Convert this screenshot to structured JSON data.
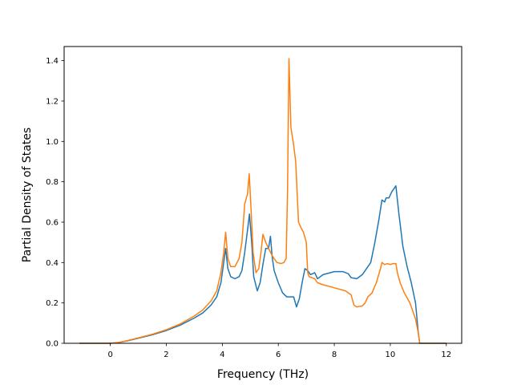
{
  "chart_data": {
    "type": "line",
    "title": "",
    "xlabel": "Frequency (THz)",
    "ylabel": "Partial Density of States",
    "xlim": [
      -1.65,
      12.55
    ],
    "ylim": [
      0.0,
      1.47
    ],
    "xticks": [
      0,
      2,
      4,
      6,
      8,
      10,
      12
    ],
    "xtick_labels": [
      "0",
      "2",
      "4",
      "6",
      "8",
      "10",
      "12"
    ],
    "yticks": [
      0.0,
      0.2,
      0.4,
      0.6,
      0.8,
      1.0,
      1.2,
      1.4
    ],
    "ytick_labels": [
      "0.0",
      "0.2",
      "0.4",
      "0.6",
      "0.8",
      "1.0",
      "1.2",
      "1.4"
    ],
    "grid": false,
    "series": [
      {
        "color": "#1f77b4",
        "points": [
          [
            -1.1,
            0.0
          ],
          [
            0.0,
            0.0
          ],
          [
            0.3,
            0.004
          ],
          [
            0.6,
            0.012
          ],
          [
            1.0,
            0.025
          ],
          [
            1.5,
            0.042
          ],
          [
            2.0,
            0.063
          ],
          [
            2.5,
            0.09
          ],
          [
            3.0,
            0.125
          ],
          [
            3.3,
            0.15
          ],
          [
            3.6,
            0.19
          ],
          [
            3.8,
            0.23
          ],
          [
            3.95,
            0.3
          ],
          [
            4.05,
            0.4
          ],
          [
            4.12,
            0.47
          ],
          [
            4.2,
            0.37
          ],
          [
            4.3,
            0.33
          ],
          [
            4.45,
            0.32
          ],
          [
            4.6,
            0.33
          ],
          [
            4.7,
            0.36
          ],
          [
            4.8,
            0.45
          ],
          [
            4.9,
            0.56
          ],
          [
            4.97,
            0.64
          ],
          [
            5.05,
            0.5
          ],
          [
            5.12,
            0.33
          ],
          [
            5.25,
            0.26
          ],
          [
            5.35,
            0.3
          ],
          [
            5.45,
            0.39
          ],
          [
            5.55,
            0.47
          ],
          [
            5.65,
            0.47
          ],
          [
            5.72,
            0.53
          ],
          [
            5.78,
            0.43
          ],
          [
            5.85,
            0.36
          ],
          [
            6.0,
            0.3
          ],
          [
            6.15,
            0.25
          ],
          [
            6.3,
            0.23
          ],
          [
            6.45,
            0.23
          ],
          [
            6.55,
            0.23
          ],
          [
            6.65,
            0.18
          ],
          [
            6.75,
            0.22
          ],
          [
            6.85,
            0.3
          ],
          [
            6.95,
            0.37
          ],
          [
            7.05,
            0.36
          ],
          [
            7.15,
            0.34
          ],
          [
            7.3,
            0.35
          ],
          [
            7.4,
            0.32
          ],
          [
            7.6,
            0.34
          ],
          [
            8.0,
            0.355
          ],
          [
            8.3,
            0.355
          ],
          [
            8.5,
            0.345
          ],
          [
            8.6,
            0.325
          ],
          [
            8.8,
            0.32
          ],
          [
            9.0,
            0.34
          ],
          [
            9.1,
            0.36
          ],
          [
            9.3,
            0.4
          ],
          [
            9.45,
            0.5
          ],
          [
            9.6,
            0.62
          ],
          [
            9.7,
            0.71
          ],
          [
            9.8,
            0.7
          ],
          [
            9.85,
            0.72
          ],
          [
            9.95,
            0.72
          ],
          [
            10.05,
            0.75
          ],
          [
            10.15,
            0.77
          ],
          [
            10.2,
            0.78
          ],
          [
            10.3,
            0.65
          ],
          [
            10.45,
            0.48
          ],
          [
            10.6,
            0.38
          ],
          [
            10.75,
            0.3
          ],
          [
            10.9,
            0.2
          ],
          [
            11.0,
            0.05
          ],
          [
            11.05,
            0.0
          ],
          [
            12.0,
            0.0
          ]
        ]
      },
      {
        "color": "#ff7f0e",
        "points": [
          [
            -1.1,
            0.0
          ],
          [
            0.0,
            0.0
          ],
          [
            0.3,
            0.004
          ],
          [
            0.6,
            0.013
          ],
          [
            1.0,
            0.027
          ],
          [
            1.5,
            0.045
          ],
          [
            2.0,
            0.067
          ],
          [
            2.5,
            0.096
          ],
          [
            3.0,
            0.135
          ],
          [
            3.3,
            0.165
          ],
          [
            3.6,
            0.21
          ],
          [
            3.8,
            0.26
          ],
          [
            3.95,
            0.35
          ],
          [
            4.05,
            0.45
          ],
          [
            4.12,
            0.55
          ],
          [
            4.2,
            0.42
          ],
          [
            4.3,
            0.38
          ],
          [
            4.45,
            0.38
          ],
          [
            4.6,
            0.42
          ],
          [
            4.7,
            0.5
          ],
          [
            4.8,
            0.69
          ],
          [
            4.9,
            0.74
          ],
          [
            4.96,
            0.84
          ],
          [
            5.02,
            0.68
          ],
          [
            5.1,
            0.45
          ],
          [
            5.2,
            0.35
          ],
          [
            5.3,
            0.37
          ],
          [
            5.38,
            0.45
          ],
          [
            5.45,
            0.54
          ],
          [
            5.55,
            0.5
          ],
          [
            5.65,
            0.47
          ],
          [
            5.8,
            0.43
          ],
          [
            5.95,
            0.4
          ],
          [
            6.1,
            0.395
          ],
          [
            6.2,
            0.4
          ],
          [
            6.28,
            0.42
          ],
          [
            6.33,
            0.75
          ],
          [
            6.38,
            1.41
          ],
          [
            6.45,
            1.07
          ],
          [
            6.55,
            0.98
          ],
          [
            6.62,
            0.9
          ],
          [
            6.68,
            0.72
          ],
          [
            6.72,
            0.6
          ],
          [
            6.8,
            0.575
          ],
          [
            6.9,
            0.55
          ],
          [
            7.0,
            0.5
          ],
          [
            7.05,
            0.35
          ],
          [
            7.1,
            0.33
          ],
          [
            7.3,
            0.32
          ],
          [
            7.4,
            0.3
          ],
          [
            7.6,
            0.29
          ],
          [
            8.0,
            0.275
          ],
          [
            8.4,
            0.26
          ],
          [
            8.6,
            0.24
          ],
          [
            8.7,
            0.19
          ],
          [
            8.8,
            0.18
          ],
          [
            9.0,
            0.185
          ],
          [
            9.1,
            0.2
          ],
          [
            9.2,
            0.23
          ],
          [
            9.35,
            0.25
          ],
          [
            9.5,
            0.3
          ],
          [
            9.65,
            0.37
          ],
          [
            9.7,
            0.4
          ],
          [
            9.8,
            0.39
          ],
          [
            9.9,
            0.395
          ],
          [
            10.0,
            0.39
          ],
          [
            10.1,
            0.395
          ],
          [
            10.2,
            0.395
          ],
          [
            10.25,
            0.35
          ],
          [
            10.35,
            0.3
          ],
          [
            10.5,
            0.25
          ],
          [
            10.7,
            0.2
          ],
          [
            10.9,
            0.12
          ],
          [
            11.0,
            0.05
          ],
          [
            11.05,
            0.0
          ],
          [
            12.0,
            0.0
          ]
        ]
      }
    ]
  }
}
